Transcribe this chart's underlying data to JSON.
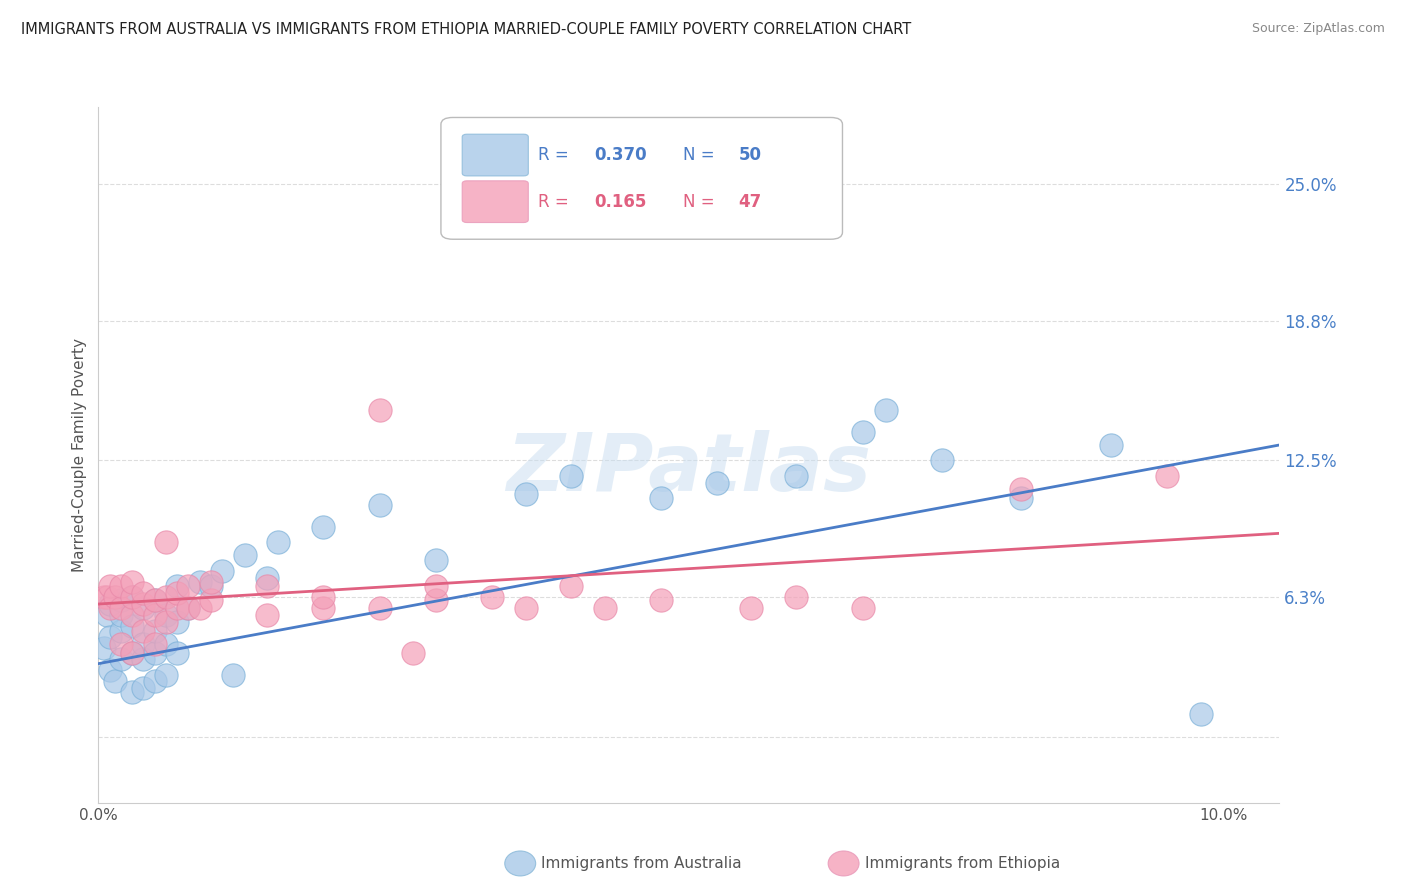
{
  "title": "IMMIGRANTS FROM AUSTRALIA VS IMMIGRANTS FROM ETHIOPIA MARRIED-COUPLE FAMILY POVERTY CORRELATION CHART",
  "source": "Source: ZipAtlas.com",
  "ylabel": "Married-Couple Family Poverty",
  "xlim": [
    0.0,
    0.105
  ],
  "ylim": [
    -0.03,
    0.285
  ],
  "yticks": [
    0.0,
    0.063,
    0.125,
    0.188,
    0.25
  ],
  "ytick_labels": [
    "",
    "6.3%",
    "12.5%",
    "18.8%",
    "25.0%"
  ],
  "color_australia": "#a8c8e8",
  "color_ethiopia": "#f4a0b8",
  "color_aus_line": "#4a7cc7",
  "color_eth_line": "#e06080",
  "background_color": "#ffffff",
  "grid_color": "#dddddd",
  "watermark": "ZIPatlas",
  "legend_r1": "0.370",
  "legend_n1": "50",
  "legend_r2": "0.165",
  "legend_n2": "47",
  "australia_scatter": [
    [
      0.0005,
      0.04
    ],
    [
      0.0008,
      0.055
    ],
    [
      0.001,
      0.03
    ],
    [
      0.001,
      0.045
    ],
    [
      0.001,
      0.06
    ],
    [
      0.0015,
      0.025
    ],
    [
      0.002,
      0.035
    ],
    [
      0.002,
      0.048
    ],
    [
      0.002,
      0.055
    ],
    [
      0.002,
      0.062
    ],
    [
      0.003,
      0.02
    ],
    [
      0.003,
      0.038
    ],
    [
      0.003,
      0.05
    ],
    [
      0.003,
      0.063
    ],
    [
      0.004,
      0.022
    ],
    [
      0.004,
      0.035
    ],
    [
      0.004,
      0.042
    ],
    [
      0.004,
      0.058
    ],
    [
      0.005,
      0.025
    ],
    [
      0.005,
      0.038
    ],
    [
      0.005,
      0.048
    ],
    [
      0.005,
      0.062
    ],
    [
      0.006,
      0.028
    ],
    [
      0.006,
      0.042
    ],
    [
      0.006,
      0.055
    ],
    [
      0.007,
      0.038
    ],
    [
      0.007,
      0.052
    ],
    [
      0.007,
      0.068
    ],
    [
      0.008,
      0.058
    ],
    [
      0.009,
      0.07
    ],
    [
      0.01,
      0.068
    ],
    [
      0.011,
      0.075
    ],
    [
      0.012,
      0.028
    ],
    [
      0.013,
      0.082
    ],
    [
      0.015,
      0.072
    ],
    [
      0.016,
      0.088
    ],
    [
      0.02,
      0.095
    ],
    [
      0.025,
      0.105
    ],
    [
      0.03,
      0.08
    ],
    [
      0.038,
      0.11
    ],
    [
      0.042,
      0.118
    ],
    [
      0.05,
      0.108
    ],
    [
      0.055,
      0.115
    ],
    [
      0.062,
      0.118
    ],
    [
      0.068,
      0.138
    ],
    [
      0.07,
      0.148
    ],
    [
      0.075,
      0.125
    ],
    [
      0.082,
      0.108
    ],
    [
      0.09,
      0.132
    ],
    [
      0.098,
      0.01
    ]
  ],
  "ethiopia_scatter": [
    [
      0.0005,
      0.063
    ],
    [
      0.0008,
      0.063
    ],
    [
      0.001,
      0.058
    ],
    [
      0.001,
      0.068
    ],
    [
      0.0015,
      0.063
    ],
    [
      0.002,
      0.042
    ],
    [
      0.002,
      0.058
    ],
    [
      0.002,
      0.068
    ],
    [
      0.003,
      0.038
    ],
    [
      0.003,
      0.055
    ],
    [
      0.003,
      0.063
    ],
    [
      0.003,
      0.07
    ],
    [
      0.004,
      0.048
    ],
    [
      0.004,
      0.06
    ],
    [
      0.004,
      0.065
    ],
    [
      0.005,
      0.042
    ],
    [
      0.005,
      0.055
    ],
    [
      0.005,
      0.062
    ],
    [
      0.006,
      0.052
    ],
    [
      0.006,
      0.063
    ],
    [
      0.006,
      0.088
    ],
    [
      0.007,
      0.058
    ],
    [
      0.007,
      0.065
    ],
    [
      0.008,
      0.058
    ],
    [
      0.008,
      0.068
    ],
    [
      0.009,
      0.058
    ],
    [
      0.01,
      0.062
    ],
    [
      0.01,
      0.07
    ],
    [
      0.015,
      0.055
    ],
    [
      0.015,
      0.068
    ],
    [
      0.02,
      0.058
    ],
    [
      0.02,
      0.063
    ],
    [
      0.025,
      0.058
    ],
    [
      0.025,
      0.148
    ],
    [
      0.028,
      0.038
    ],
    [
      0.03,
      0.062
    ],
    [
      0.03,
      0.068
    ],
    [
      0.035,
      0.063
    ],
    [
      0.038,
      0.058
    ],
    [
      0.042,
      0.068
    ],
    [
      0.045,
      0.058
    ],
    [
      0.05,
      0.062
    ],
    [
      0.058,
      0.058
    ],
    [
      0.062,
      0.063
    ],
    [
      0.068,
      0.058
    ],
    [
      0.082,
      0.112
    ],
    [
      0.095,
      0.118
    ]
  ],
  "aus_line_x": [
    0.0,
    0.105
  ],
  "aus_line_y": [
    0.033,
    0.132
  ],
  "eth_line_x": [
    0.0,
    0.105
  ],
  "eth_line_y": [
    0.06,
    0.092
  ]
}
